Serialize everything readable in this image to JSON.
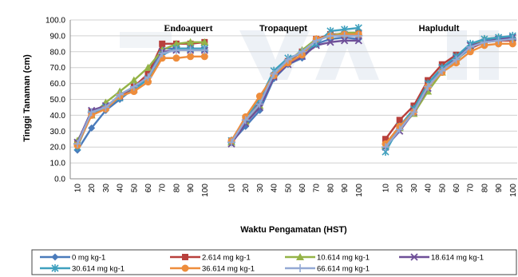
{
  "chart_data": {
    "type": "line",
    "ylabel": "Tinggi Tanaman (cm)",
    "xlabel": "Waktu Pengamatan (HST)",
    "ylim": [
      0,
      100
    ],
    "yticks": [
      "0.0",
      "10.0",
      "20.0",
      "30.0",
      "40.0",
      "50.0",
      "60.0",
      "70.0",
      "80.0",
      "90.0",
      "100.0"
    ],
    "categories": [
      "10",
      "20",
      "30",
      "40",
      "50",
      "60",
      "70",
      "80",
      "90",
      "100"
    ],
    "grid": true,
    "legend_position": "bottom",
    "panels": [
      {
        "title": "Endoaquert",
        "series": [
          {
            "name": "0 mg kg-1",
            "values": [
              18,
              32,
              43,
              50,
              57,
              65,
              82,
              82,
              82,
              82
            ]
          },
          {
            "name": "2.614 mg kg-1",
            "values": [
              22,
              42,
              45,
              52,
              58,
              66,
              85,
              85,
              85,
              86
            ]
          },
          {
            "name": "10.614 mg kg-1",
            "values": [
              24,
              40,
              48,
              55,
              62,
              70,
              81,
              85,
              86,
              86
            ]
          },
          {
            "name": "18.614 mg kg-1",
            "values": [
              23,
              43,
              46,
              51,
              56,
              63,
              80,
              81,
              81,
              81
            ]
          },
          {
            "name": "30.614 mg kg-1",
            "values": [
              20,
              41,
              45,
              51,
              56,
              63,
              78,
              82,
              82,
              82
            ]
          },
          {
            "name": "36.614 mg kg-1",
            "values": [
              21,
              40,
              44,
              52,
              55,
              61,
              76,
              76,
              77,
              77
            ]
          },
          {
            "name": "66.614 mg kg-1",
            "values": [
              22,
              42,
              45,
              53,
              58,
              64,
              79,
              81,
              81,
              81
            ]
          }
        ]
      },
      {
        "title": "Tropaquept",
        "series": [
          {
            "name": "0 mg kg-1",
            "values": [
              23,
              33,
              43,
              63,
              72,
              76,
              85,
              88,
              89,
              88
            ]
          },
          {
            "name": "2.614 mg kg-1",
            "values": [
              24,
              37,
              48,
              65,
              74,
              80,
              88,
              91,
              91,
              92
            ]
          },
          {
            "name": "10.614 mg kg-1",
            "values": [
              23,
              36,
              46,
              66,
              74,
              81,
              88,
              90,
              92,
              92
            ]
          },
          {
            "name": "18.614 mg kg-1",
            "values": [
              22,
              35,
              45,
              64,
              72,
              77,
              84,
              86,
              87,
              87
            ]
          },
          {
            "name": "30.614 mg kg-1",
            "values": [
              24,
              38,
              50,
              68,
              76,
              79,
              85,
              93,
              94,
              95
            ]
          },
          {
            "name": "36.614 mg kg-1",
            "values": [
              24,
              39,
              52,
              65,
              73,
              78,
              88,
              90,
              91,
              91
            ]
          },
          {
            "name": "66.614 mg kg-1",
            "values": [
              23,
              37,
              47,
              66,
              75,
              80,
              87,
              90,
              90,
              90
            ]
          }
        ]
      },
      {
        "title": "Hapludult",
        "series": [
          {
            "name": "0 mg kg-1",
            "values": [
              22,
              33,
              43,
              58,
              68,
              75,
              82,
              87,
              88,
              89
            ]
          },
          {
            "name": "2.614 mg kg-1",
            "values": [
              25,
              37,
              46,
              62,
              72,
              78,
              82,
              86,
              87,
              87
            ]
          },
          {
            "name": "10.614 mg kg-1",
            "values": [
              21,
              32,
              41,
              55,
              67,
              74,
              84,
              88,
              89,
              89
            ]
          },
          {
            "name": "18.614 mg kg-1",
            "values": [
              20,
              30,
              42,
              57,
              70,
              76,
              84,
              86,
              88,
              89
            ]
          },
          {
            "name": "30.614 mg kg-1",
            "values": [
              17,
              33,
              44,
              60,
              70,
              77,
              85,
              88,
              89,
              90
            ]
          },
          {
            "name": "36.614 mg kg-1",
            "values": [
              22,
              33,
              42,
              58,
              67,
              73,
              80,
              84,
              85,
              85
            ]
          },
          {
            "name": "66.614 mg kg-1",
            "values": [
              20,
              31,
              42,
              58,
              68,
              75,
              83,
              86,
              87,
              88
            ]
          }
        ]
      }
    ],
    "series_styles": [
      {
        "color": "#4a7bbb",
        "marker": "diamond"
      },
      {
        "color": "#b8403c",
        "marker": "square"
      },
      {
        "color": "#94b347",
        "marker": "triangle"
      },
      {
        "color": "#6e4f98",
        "marker": "x"
      },
      {
        "color": "#3fa0be",
        "marker": "star"
      },
      {
        "color": "#ee8d3c",
        "marker": "circle"
      },
      {
        "color": "#93a9d4",
        "marker": "plus"
      }
    ]
  }
}
